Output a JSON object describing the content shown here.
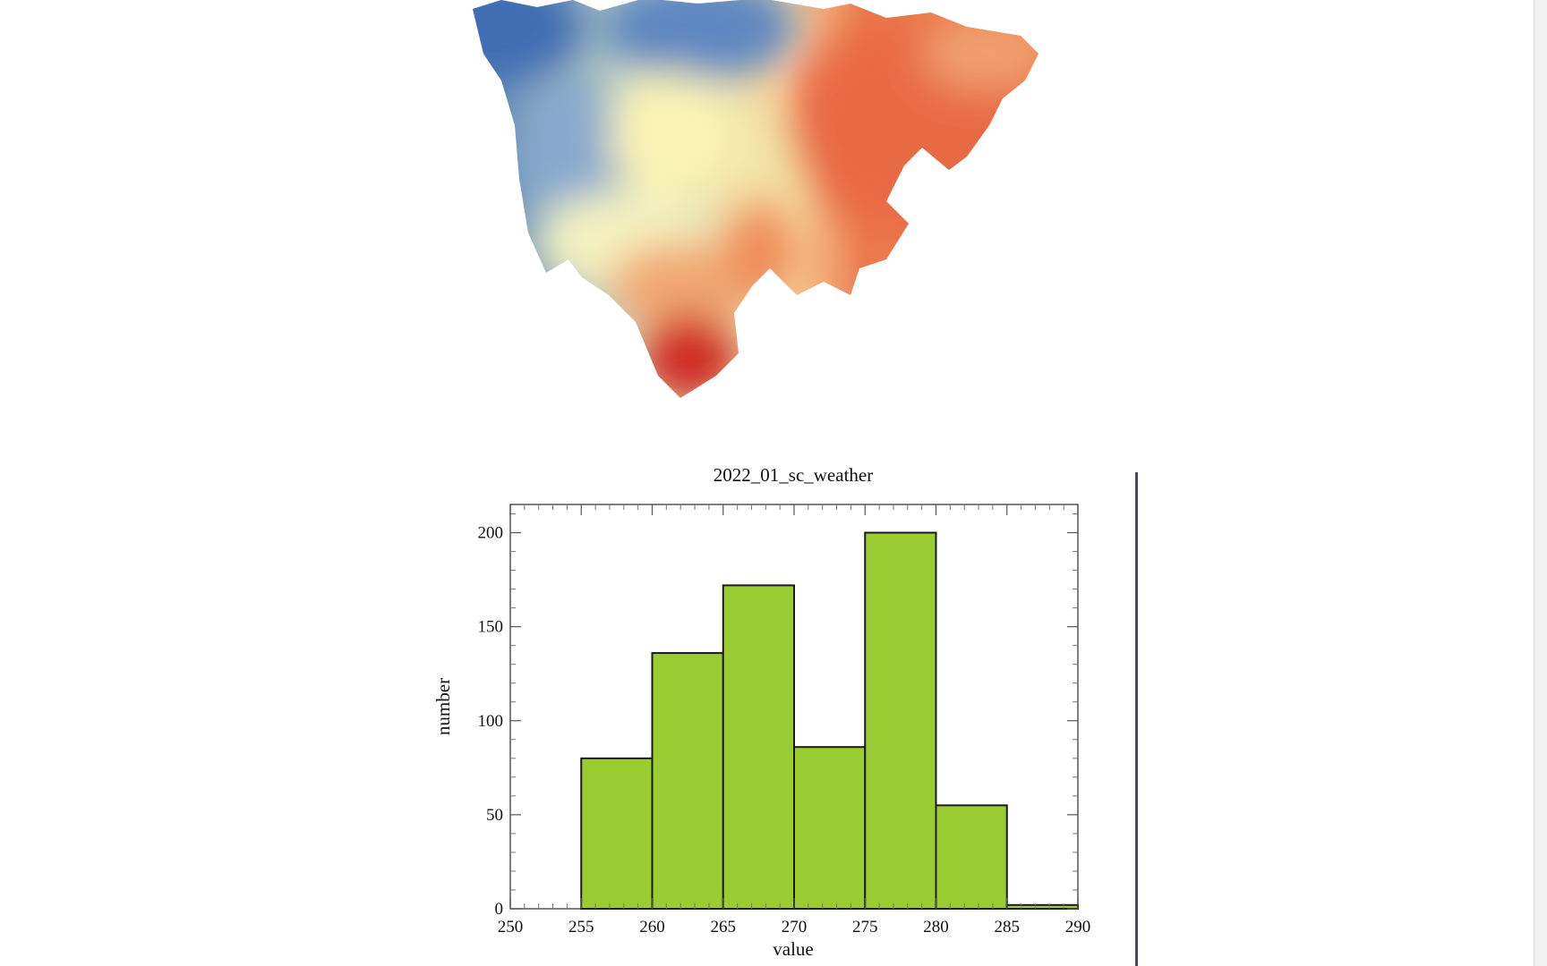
{
  "map": {
    "colormap": [
      "#3f6db3",
      "#6f97c8",
      "#a9c3d8",
      "#e6efc4",
      "#fbf3b4",
      "#f7c98c",
      "#f08c5a",
      "#e35b3c",
      "#cf2a24"
    ]
  },
  "chart_data": {
    "type": "bar",
    "title": "2022_01_sc_weather",
    "xlabel": "value",
    "ylabel": "number",
    "xlim": [
      250,
      290
    ],
    "ylim": [
      0,
      215
    ],
    "x_ticks": [
      "250",
      "255",
      "260",
      "265",
      "270",
      "275",
      "280",
      "285",
      "290"
    ],
    "y_ticks": [
      "0",
      "50",
      "100",
      "150",
      "200"
    ],
    "bins": [
      [
        255,
        260
      ],
      [
        260,
        265
      ],
      [
        265,
        270
      ],
      [
        270,
        275
      ],
      [
        275,
        280
      ],
      [
        280,
        285
      ],
      [
        285,
        290
      ]
    ],
    "values": [
      80,
      136,
      172,
      86,
      200,
      55,
      2
    ],
    "bar_color": "#9acd32",
    "grid": false
  }
}
